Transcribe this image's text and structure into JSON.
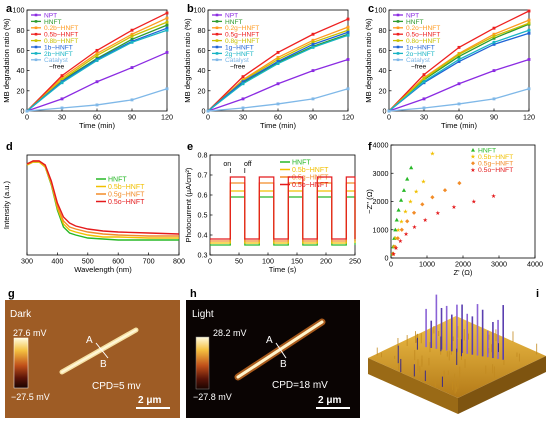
{
  "colors": {
    "npt": "#8B2BE2",
    "hnft": "#2E9B2E",
    "b02": "#FF9A1F",
    "b05": "#EE2020",
    "s08": "#C8C000",
    "s1": "#1E63D6",
    "s2": "#18B4C4",
    "cat": "#7FB8E8",
    "r1": "#27B827",
    "r2": "#F1C000",
    "r3": "#F28C28",
    "r4": "#E41A1C"
  },
  "panels": {
    "a": {
      "label": "a"
    },
    "b": {
      "label": "b"
    },
    "c": {
      "label": "c"
    },
    "d": {
      "label": "d"
    },
    "e": {
      "label": "e"
    },
    "f": {
      "label": "f"
    },
    "g": {
      "label": "g",
      "mode": "Dark",
      "cbar_max": "27.6 mV",
      "cbar_min": "−27.5 mV",
      "point_a": "A",
      "point_b": "B",
      "cpd": "CPD=5 mv",
      "scale": "2 μm"
    },
    "h": {
      "label": "h",
      "mode": "Light",
      "cbar_max": "28.2 mV",
      "cbar_min": "−27.8 mV",
      "point_a": "A",
      "point_b": "B",
      "cpd": "CPD=18 mV",
      "scale": "2 μm"
    },
    "i": {
      "label": "i"
    }
  },
  "chart_data": [
    {
      "panel": "a",
      "type": "line",
      "xlabel": "Time (min)",
      "ylabel": "MB degradation ratio (%)",
      "xlim": [
        0,
        120
      ],
      "ylim": [
        0,
        100
      ],
      "xticks": [
        0,
        30,
        60,
        90,
        120
      ],
      "yticks": [
        0,
        20,
        40,
        60,
        80,
        100
      ],
      "x": [
        0,
        30,
        60,
        90,
        120
      ],
      "series": [
        {
          "name": "NPT",
          "color_key": "npt",
          "values": [
            0,
            12,
            29,
            43,
            58
          ]
        },
        {
          "name": "HNFT",
          "color_key": "hnft",
          "values": [
            0,
            30,
            52,
            71,
            85
          ]
        },
        {
          "name": "0.2b−HNFT",
          "color_key": "b02",
          "values": [
            0,
            33,
            57,
            76,
            92
          ]
        },
        {
          "name": "0.5b−HNFT",
          "color_key": "b05",
          "values": [
            0,
            35,
            60,
            80,
            97
          ]
        },
        {
          "name": "0.8b−HNFT",
          "color_key": "s08",
          "values": [
            0,
            31,
            55,
            74,
            88
          ]
        },
        {
          "name": "1b−HNFT",
          "color_key": "s1",
          "values": [
            0,
            29,
            51,
            69,
            82
          ]
        },
        {
          "name": "2b−HNFT",
          "color_key": "s2",
          "values": [
            0,
            28,
            50,
            68,
            80
          ]
        },
        {
          "name": "Catalyst",
          "color_key": "cat",
          "values": [
            0,
            3,
            6,
            11,
            22
          ]
        }
      ],
      "legend_extra": "−free"
    },
    {
      "panel": "b",
      "type": "line",
      "xlabel": "Time (min)",
      "ylabel": "MB degradation ratio (%)",
      "xlim": [
        0,
        120
      ],
      "ylim": [
        0,
        100
      ],
      "xticks": [
        0,
        30,
        60,
        90,
        120
      ],
      "yticks": [
        0,
        20,
        40,
        60,
        80,
        100
      ],
      "x": [
        0,
        30,
        60,
        90,
        120
      ],
      "series": [
        {
          "name": "NPT",
          "color_key": "npt",
          "values": [
            0,
            12,
            27,
            40,
            51
          ]
        },
        {
          "name": "HNFT",
          "color_key": "hnft",
          "values": [
            0,
            28,
            48,
            64,
            76
          ]
        },
        {
          "name": "0.2g−HNFT",
          "color_key": "b02",
          "values": [
            0,
            31,
            53,
            70,
            83
          ]
        },
        {
          "name": "0.5g−HNFT",
          "color_key": "b05",
          "values": [
            0,
            34,
            58,
            76,
            91
          ]
        },
        {
          "name": "0.8g−HNFT",
          "color_key": "s08",
          "values": [
            0,
            30,
            51,
            68,
            80
          ]
        },
        {
          "name": "1g−HNFT",
          "color_key": "s1",
          "values": [
            0,
            29,
            49,
            66,
            78
          ]
        },
        {
          "name": "2g−HNFT",
          "color_key": "s2",
          "values": [
            0,
            27,
            47,
            63,
            75
          ]
        },
        {
          "name": "Catalyst",
          "color_key": "cat",
          "values": [
            0,
            3,
            7,
            12,
            22
          ]
        }
      ],
      "legend_extra": "−free"
    },
    {
      "panel": "c",
      "type": "line",
      "xlabel": "Time (min)",
      "ylabel": "MB degradation ratio (%)",
      "xlim": [
        0,
        120
      ],
      "ylim": [
        0,
        100
      ],
      "xticks": [
        0,
        30,
        60,
        90,
        120
      ],
      "yticks": [
        0,
        20,
        40,
        60,
        80,
        100
      ],
      "x": [
        0,
        30,
        60,
        90,
        120
      ],
      "series": [
        {
          "name": "NPT",
          "color_key": "npt",
          "values": [
            0,
            12,
            27,
            40,
            51
          ]
        },
        {
          "name": "HNFT",
          "color_key": "hnft",
          "values": [
            0,
            31,
            54,
            72,
            86
          ]
        },
        {
          "name": "0.2o−HNFT",
          "color_key": "b02",
          "values": [
            0,
            33,
            57,
            76,
            90
          ]
        },
        {
          "name": "0.5o−HNFT",
          "color_key": "b05",
          "values": [
            0,
            36,
            63,
            82,
            99
          ]
        },
        {
          "name": "0.8o−HNFT",
          "color_key": "s08",
          "values": [
            0,
            32,
            56,
            74,
            87
          ]
        },
        {
          "name": "1o−HNFT",
          "color_key": "s1",
          "values": [
            0,
            28,
            49,
            66,
            77
          ]
        },
        {
          "name": "2o−HNFT",
          "color_key": "s2",
          "values": [
            0,
            29,
            51,
            68,
            80
          ]
        },
        {
          "name": "Catalyst",
          "color_key": "cat",
          "values": [
            0,
            3,
            7,
            12,
            22
          ]
        }
      ],
      "legend_extra": "−free"
    },
    {
      "panel": "d",
      "type": "line",
      "xlabel": "Wavelength (nm)",
      "ylabel": "Intensity (a.u.)",
      "xlim": [
        300,
        800
      ],
      "ylim": [
        0,
        1
      ],
      "xticks": [
        300,
        400,
        500,
        600,
        700,
        800
      ],
      "yticks": [],
      "x": [
        300,
        320,
        340,
        360,
        380,
        400,
        420,
        440,
        460,
        500,
        550,
        600,
        700,
        800
      ],
      "series": [
        {
          "name": "HNFT",
          "color_key": "r1",
          "values": [
            0.9,
            0.93,
            0.93,
            0.88,
            0.7,
            0.45,
            0.28,
            0.22,
            0.2,
            0.17,
            0.16,
            0.15,
            0.15,
            0.15
          ]
        },
        {
          "name": "0.5b−HNFT",
          "color_key": "r2",
          "values": [
            0.9,
            0.93,
            0.93,
            0.88,
            0.71,
            0.47,
            0.31,
            0.25,
            0.23,
            0.2,
            0.18,
            0.18,
            0.17,
            0.17
          ]
        },
        {
          "name": "0.5g−HNFT",
          "color_key": "r3",
          "values": [
            0.91,
            0.94,
            0.94,
            0.89,
            0.72,
            0.49,
            0.34,
            0.28,
            0.26,
            0.23,
            0.21,
            0.2,
            0.19,
            0.19
          ]
        },
        {
          "name": "0.5o−HNFT",
          "color_key": "r4",
          "values": [
            0.91,
            0.94,
            0.94,
            0.9,
            0.74,
            0.52,
            0.38,
            0.32,
            0.29,
            0.26,
            0.24,
            0.23,
            0.22,
            0.21
          ]
        }
      ]
    },
    {
      "panel": "e",
      "type": "line",
      "xlabel": "Time (s)",
      "ylabel": "Photocurrent (μA/cm²)",
      "xlim": [
        0,
        250
      ],
      "ylim": [
        0.3,
        0.8
      ],
      "xticks": [
        0,
        50,
        100,
        150,
        200,
        250
      ],
      "yticks": [
        0.3,
        0.4,
        0.5,
        0.6,
        0.7,
        0.8
      ],
      "on_intervals": [
        [
          35,
          60
        ],
        [
          85,
          110
        ],
        [
          135,
          160
        ],
        [
          185,
          210
        ],
        [
          235,
          250
        ]
      ],
      "annotations": [
        "on",
        "off"
      ],
      "series": [
        {
          "name": "HNFT",
          "color_key": "r1",
          "off_level": 0.35,
          "on_level": 0.59
        },
        {
          "name": "0.5b−HNFT",
          "color_key": "r2",
          "off_level": 0.36,
          "on_level": 0.62
        },
        {
          "name": "0.5g−HNFT",
          "color_key": "r3",
          "off_level": 0.37,
          "on_level": 0.66
        },
        {
          "name": "0.5o−HNFT",
          "color_key": "r4",
          "off_level": 0.38,
          "on_level": 0.69
        }
      ]
    },
    {
      "panel": "f",
      "type": "scatter",
      "xlabel": "Z' (Ω)",
      "ylabel": "−Z'' (Ω)",
      "xlim": [
        0,
        4000
      ],
      "ylim": [
        0,
        4000
      ],
      "xticks": [
        0,
        1000,
        2000,
        3000,
        4000
      ],
      "yticks": [
        0,
        1000,
        2000,
        3000,
        4000
      ],
      "series": [
        {
          "name": "HNFT",
          "color_key": "r1",
          "marker": "triangle",
          "x": [
            40,
            60,
            90,
            120,
            160,
            210,
            280,
            360,
            450,
            560
          ],
          "y": [
            150,
            400,
            700,
            1000,
            1350,
            1700,
            2050,
            2400,
            2800,
            3200
          ]
        },
        {
          "name": "0.5b−HNFT",
          "color_key": "r2",
          "marker": "star",
          "x": [
            50,
            80,
            130,
            200,
            290,
            400,
            540,
            700,
            900,
            1150
          ],
          "y": [
            150,
            400,
            700,
            1000,
            1300,
            1650,
            2000,
            2350,
            2700,
            3700
          ]
        },
        {
          "name": "0.5g−HNFT",
          "color_key": "r3",
          "marker": "diamond",
          "x": [
            60,
            110,
            190,
            300,
            450,
            640,
            870,
            1150,
            1500,
            1900
          ],
          "y": [
            150,
            400,
            700,
            1000,
            1300,
            1600,
            1900,
            2150,
            2400,
            2650
          ]
        },
        {
          "name": "0.5o−HNFT",
          "color_key": "r4",
          "marker": "star",
          "x": [
            70,
            140,
            260,
            420,
            650,
            950,
            1300,
            1750,
            2300,
            2850
          ],
          "y": [
            150,
            350,
            600,
            850,
            1100,
            1350,
            1600,
            1800,
            2000,
            2200
          ]
        }
      ]
    }
  ]
}
